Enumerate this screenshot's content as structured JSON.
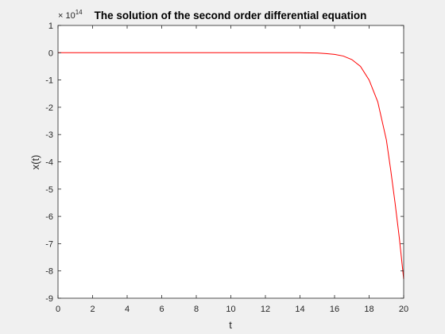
{
  "chart_data": {
    "type": "line",
    "title": "The solution of the second order differential equation",
    "xlabel": "t",
    "ylabel": "x(t)",
    "y_exponent_label": "× 10",
    "y_exponent_power": "14",
    "xlim": [
      0,
      20
    ],
    "ylim": [
      -9,
      1
    ],
    "xticks": [
      0,
      2,
      4,
      6,
      8,
      10,
      12,
      14,
      16,
      18,
      20
    ],
    "yticks": [
      1,
      0,
      -1,
      -2,
      -3,
      -4,
      -5,
      -6,
      -7,
      -8,
      -9
    ],
    "grid": false,
    "series": [
      {
        "color": "#ff0000",
        "x": [
          0,
          2,
          4,
          6,
          8,
          10,
          12,
          14,
          15,
          15.5,
          16,
          16.5,
          17,
          17.5,
          18,
          18.5,
          19,
          19.25,
          19.5,
          19.75,
          20
        ],
        "y": [
          0,
          0,
          0,
          0,
          0,
          0,
          0,
          0,
          -0.01,
          -0.03,
          -0.06,
          -0.12,
          -0.25,
          -0.5,
          -1.0,
          -1.8,
          -3.2,
          -4.3,
          -5.5,
          -6.8,
          -8.3
        ]
      }
    ]
  },
  "colors": {
    "figure_background": "#f0f0f0",
    "axes_background": "#ffffff",
    "axes": "#262626",
    "line": "#ff0000"
  }
}
